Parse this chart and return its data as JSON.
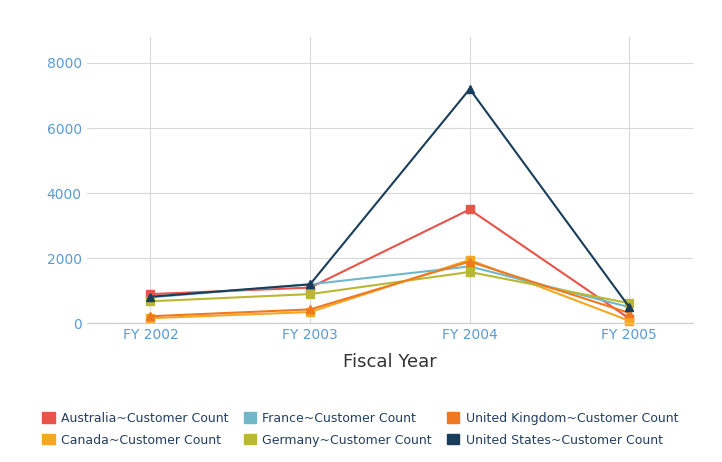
{
  "x_labels": [
    "FY 2002",
    "FY 2003",
    "FY 2004",
    "FY 2005"
  ],
  "x_values": [
    0,
    1,
    2,
    3
  ],
  "series": [
    {
      "name": "Australia~Customer Count",
      "color": "#e8534a",
      "marker": "s",
      "values": [
        900,
        1100,
        3500,
        150
      ]
    },
    {
      "name": "Canada~Customer Count",
      "color": "#f5a623",
      "marker": "s",
      "values": [
        160,
        350,
        1950,
        80
      ]
    },
    {
      "name": "France~Customer Count",
      "color": "#70b8c8",
      "marker": "^",
      "values": [
        800,
        1200,
        1750,
        500
      ]
    },
    {
      "name": "Germany~Customer Count",
      "color": "#b8b832",
      "marker": "s",
      "values": [
        680,
        900,
        1580,
        620
      ]
    },
    {
      "name": "United Kingdom~Customer Count",
      "color": "#f07820",
      "marker": "^",
      "values": [
        220,
        430,
        1900,
        320
      ]
    },
    {
      "name": "United States~Customer Count",
      "color": "#1a3d5c",
      "marker": "^",
      "values": [
        820,
        1200,
        7200,
        500
      ]
    }
  ],
  "xlabel": "Fiscal Year",
  "ylim": [
    0,
    8800
  ],
  "yticks": [
    0,
    2000,
    4000,
    6000,
    8000
  ],
  "bg_color": "#ffffff",
  "grid_color": "#d8d8d8",
  "legend_ncol": 3,
  "xlabel_fontsize": 13,
  "tick_fontsize": 10,
  "legend_fontsize": 9,
  "tick_color": "#5b9bd5",
  "legend_text_color": "#243f60"
}
